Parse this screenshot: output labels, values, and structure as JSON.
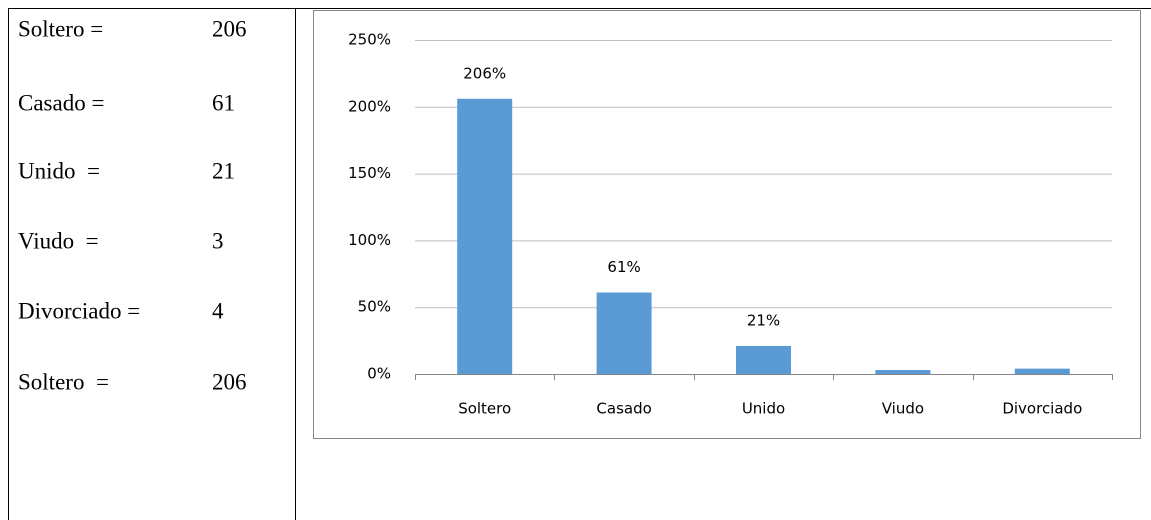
{
  "list": {
    "items": [
      {
        "label": "Soltero =",
        "value": 206
      },
      {
        "label": "Casado =",
        "value": 61
      },
      {
        "label": "Unido  =",
        "value": 21
      },
      {
        "label": "Viudo  =",
        "value": 3
      },
      {
        "label": "Divorciado =",
        "value": 4
      },
      {
        "label": "Soltero  =",
        "value": 206
      }
    ]
  },
  "chart_data": {
    "type": "bar",
    "categories": [
      "Soltero",
      "Casado",
      "Unido",
      "Viudo",
      "Divorciado"
    ],
    "values": [
      206,
      61,
      21,
      3,
      4
    ],
    "value_labels": [
      "206%",
      "61%",
      "21%",
      null,
      null
    ],
    "color": "#5b9bd5",
    "ylim": [
      0,
      250
    ],
    "yticks": [
      {
        "value": 0,
        "label": "0%"
      },
      {
        "value": 50,
        "label": "50%"
      },
      {
        "value": 100,
        "label": "100%"
      },
      {
        "value": 150,
        "label": "150%"
      },
      {
        "value": 200,
        "label": "200%"
      },
      {
        "value": 250,
        "label": "250%"
      }
    ],
    "grid": true
  }
}
